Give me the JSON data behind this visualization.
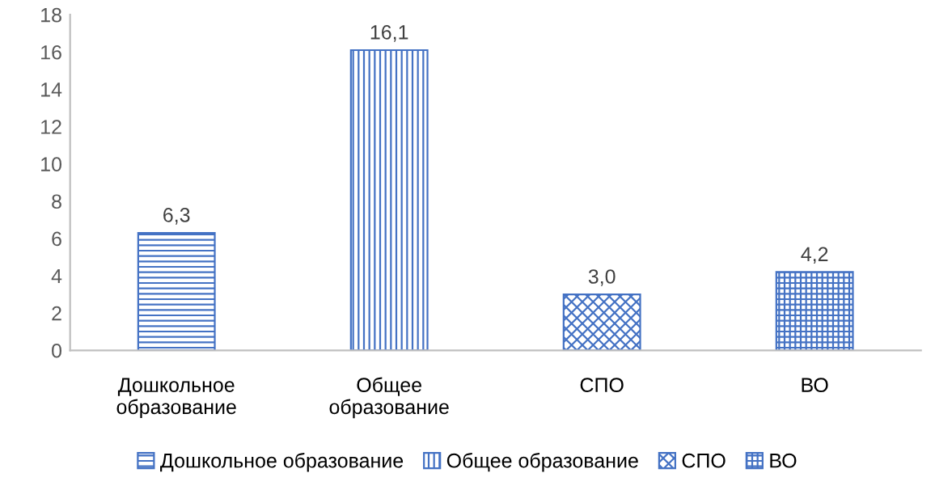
{
  "chart_data": {
    "type": "bar",
    "categories": [
      "Дошкольное образование",
      "Общее образование",
      "СПО",
      "ВО"
    ],
    "series": [
      {
        "name": "Дошкольное образование",
        "color": "#4472c4",
        "values": [
          6.3,
          null,
          null,
          null
        ],
        "value_labels": [
          "6,3",
          null,
          null,
          null
        ]
      },
      {
        "name": "Общее образование",
        "color": "#4472c4",
        "values": [
          null,
          16.1,
          null,
          null
        ],
        "value_labels": [
          null,
          "16,1",
          null,
          null
        ]
      },
      {
        "name": "СПО",
        "color": "#4472c4",
        "values": [
          null,
          null,
          3.0,
          null
        ],
        "value_labels": [
          null,
          null,
          "3,0",
          null
        ]
      },
      {
        "name": "ВО",
        "color": "#4472c4",
        "values": [
          null,
          null,
          null,
          4.2
        ],
        "value_labels": [
          null,
          null,
          null,
          "4,2"
        ]
      }
    ],
    "ylim": [
      0,
      18
    ],
    "yticks": [
      0,
      2,
      4,
      6,
      8,
      10,
      12,
      14,
      16,
      18
    ],
    "legend": "bottom"
  }
}
